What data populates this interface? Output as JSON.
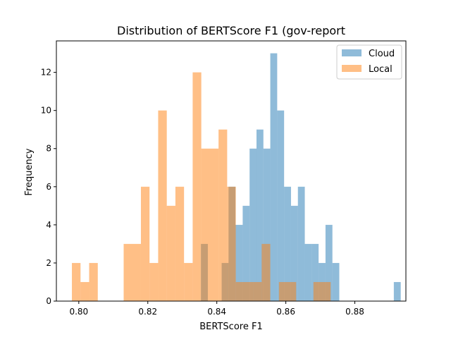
{
  "chart_data": {
    "type": "histogram",
    "title": "Distribution of BERTScore F1 (gov-report",
    "xlabel": "BERTScore F1",
    "ylabel": "Frequency",
    "xlim": [
      0.7935,
      0.8948
    ],
    "ylim": [
      0,
      13.65
    ],
    "xticks": [
      {
        "value": 0.8,
        "label": "0.80"
      },
      {
        "value": 0.82,
        "label": "0.82"
      },
      {
        "value": 0.84,
        "label": "0.84"
      },
      {
        "value": 0.86,
        "label": "0.86"
      },
      {
        "value": 0.88,
        "label": "0.88"
      }
    ],
    "yticks": [
      {
        "value": 0,
        "label": "0"
      },
      {
        "value": 2,
        "label": "2"
      },
      {
        "value": 4,
        "label": "4"
      },
      {
        "value": 6,
        "label": "6"
      },
      {
        "value": 8,
        "label": "8"
      },
      {
        "value": 10,
        "label": "10"
      },
      {
        "value": 12,
        "label": "12"
      }
    ],
    "legend_position": "top-right",
    "grid": false,
    "series": [
      {
        "name": "Cloud",
        "color": "#1f77b4",
        "alpha": 0.5,
        "bins": [
          {
            "x0": 0.8354,
            "x1": 0.8374,
            "count": 3
          },
          {
            "x0": 0.8374,
            "x1": 0.8394,
            "count": 0
          },
          {
            "x0": 0.8394,
            "x1": 0.8414,
            "count": 0
          },
          {
            "x0": 0.8414,
            "x1": 0.8434,
            "count": 2
          },
          {
            "x0": 0.8434,
            "x1": 0.8454,
            "count": 6
          },
          {
            "x0": 0.8454,
            "x1": 0.8475,
            "count": 4
          },
          {
            "x0": 0.8475,
            "x1": 0.8495,
            "count": 5
          },
          {
            "x0": 0.8495,
            "x1": 0.8515,
            "count": 8
          },
          {
            "x0": 0.8515,
            "x1": 0.8535,
            "count": 9
          },
          {
            "x0": 0.8535,
            "x1": 0.8555,
            "count": 8
          },
          {
            "x0": 0.8555,
            "x1": 0.8575,
            "count": 13
          },
          {
            "x0": 0.8575,
            "x1": 0.8595,
            "count": 10
          },
          {
            "x0": 0.8595,
            "x1": 0.8615,
            "count": 6
          },
          {
            "x0": 0.8615,
            "x1": 0.8635,
            "count": 5
          },
          {
            "x0": 0.8635,
            "x1": 0.8655,
            "count": 6
          },
          {
            "x0": 0.8655,
            "x1": 0.8675,
            "count": 3
          },
          {
            "x0": 0.8675,
            "x1": 0.8695,
            "count": 3
          },
          {
            "x0": 0.8695,
            "x1": 0.8715,
            "count": 2
          },
          {
            "x0": 0.8715,
            "x1": 0.8735,
            "count": 4
          },
          {
            "x0": 0.8735,
            "x1": 0.8755,
            "count": 2
          },
          {
            "x0": 0.8913,
            "x1": 0.8933,
            "count": 1
          }
        ]
      },
      {
        "name": "Local",
        "color": "#ff7f0e",
        "alpha": 0.5,
        "bins": [
          {
            "x0": 0.798,
            "x1": 0.8005,
            "count": 2
          },
          {
            "x0": 0.8005,
            "x1": 0.803,
            "count": 1
          },
          {
            "x0": 0.803,
            "x1": 0.8055,
            "count": 2
          },
          {
            "x0": 0.813,
            "x1": 0.818,
            "count": 3
          },
          {
            "x0": 0.818,
            "x1": 0.8205,
            "count": 6
          },
          {
            "x0": 0.8205,
            "x1": 0.823,
            "count": 2
          },
          {
            "x0": 0.823,
            "x1": 0.8255,
            "count": 10
          },
          {
            "x0": 0.8255,
            "x1": 0.828,
            "count": 5
          },
          {
            "x0": 0.828,
            "x1": 0.8305,
            "count": 6
          },
          {
            "x0": 0.8305,
            "x1": 0.833,
            "count": 2
          },
          {
            "x0": 0.833,
            "x1": 0.8355,
            "count": 12
          },
          {
            "x0": 0.8355,
            "x1": 0.8405,
            "count": 8
          },
          {
            "x0": 0.8405,
            "x1": 0.843,
            "count": 9
          },
          {
            "x0": 0.843,
            "x1": 0.8455,
            "count": 6
          },
          {
            "x0": 0.8455,
            "x1": 0.8505,
            "count": 1
          },
          {
            "x0": 0.8505,
            "x1": 0.853,
            "count": 1
          },
          {
            "x0": 0.853,
            "x1": 0.8555,
            "count": 3
          },
          {
            "x0": 0.858,
            "x1": 0.863,
            "count": 1
          },
          {
            "x0": 0.868,
            "x1": 0.8705,
            "count": 1
          },
          {
            "x0": 0.8705,
            "x1": 0.873,
            "count": 1
          }
        ]
      }
    ]
  }
}
